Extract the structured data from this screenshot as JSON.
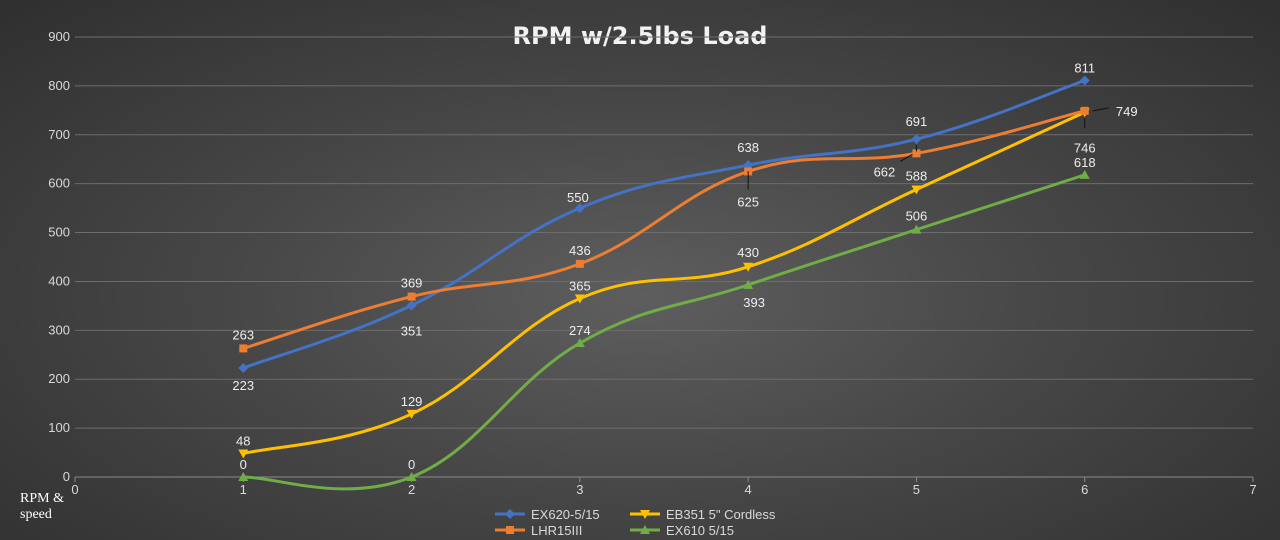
{
  "chart_data": {
    "type": "scatter",
    "title": "RPM w/2.5lbs Load",
    "ylabel": "RPM &\nspeed",
    "xlabel": "",
    "xlim": [
      0,
      7
    ],
    "ylim": [
      0,
      900
    ],
    "x_ticks": [
      0,
      1,
      2,
      3,
      4,
      5,
      6,
      7
    ],
    "y_ticks": [
      0,
      100,
      200,
      300,
      400,
      500,
      600,
      700,
      800,
      900
    ],
    "grid": "horizontal",
    "smooth_lines": true,
    "legend_position": "bottom",
    "series": [
      {
        "name": "EX620-5/15",
        "color": "#4472c4",
        "marker": "diamond",
        "points": [
          [
            1,
            223
          ],
          [
            2,
            351
          ],
          [
            3,
            550
          ],
          [
            4,
            638
          ],
          [
            5,
            691
          ],
          [
            6,
            811
          ]
        ]
      },
      {
        "name": "EB351 5\" Cordless",
        "color": "#ffc000",
        "marker": "triangle-down",
        "points": [
          [
            1,
            48
          ],
          [
            2,
            129
          ],
          [
            3,
            365
          ],
          [
            4,
            430
          ],
          [
            5,
            588
          ],
          [
            6,
            746
          ]
        ]
      },
      {
        "name": "LHR15III",
        "color": "#ed7d31",
        "marker": "square",
        "points": [
          [
            1,
            263
          ],
          [
            2,
            369
          ],
          [
            3,
            436
          ],
          [
            4,
            625
          ],
          [
            5,
            662
          ],
          [
            6,
            749
          ]
        ]
      },
      {
        "name": "EX610 5/15",
        "color": "#70ad47",
        "marker": "triangle-up",
        "points": [
          [
            1,
            0
          ],
          [
            2,
            0
          ],
          [
            3,
            274
          ],
          [
            4,
            393
          ],
          [
            5,
            506
          ],
          [
            6,
            618
          ]
        ]
      }
    ]
  }
}
